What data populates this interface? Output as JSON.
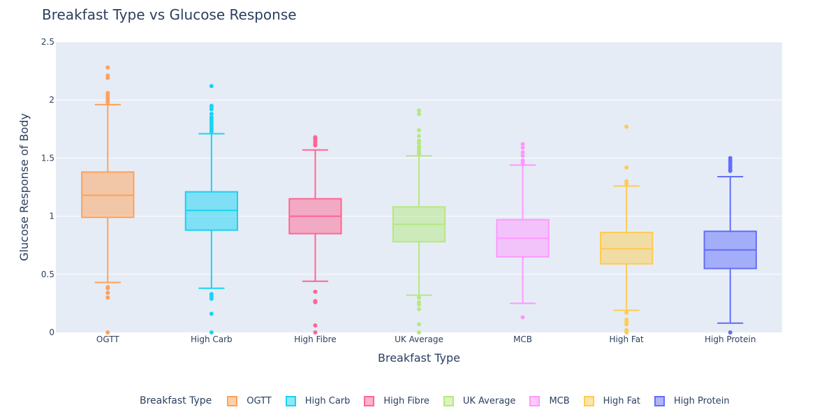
{
  "chart_data": {
    "type": "box",
    "title": "Breakfast Type vs Glucose Response",
    "xlabel": "Breakfast Type",
    "ylabel": "Glucose Response of Body",
    "ylim": [
      0,
      2.5
    ],
    "yticks": [
      0,
      0.5,
      1,
      1.5,
      2,
      2.5
    ],
    "ytick_labels": [
      "0",
      "0.5",
      "1",
      "1.5",
      "2",
      "2.5"
    ],
    "grid": true,
    "legend": {
      "title": "Breakfast Type",
      "placement": "bottom"
    },
    "categories": [
      "OGTT",
      "High Carb",
      "High Fibre",
      "UK Average",
      "MCB",
      "High Fat",
      "High Protein"
    ],
    "series": [
      {
        "name": "OGTT",
        "color": "#FFA15A",
        "q1": 0.99,
        "median": 1.18,
        "q3": 1.38,
        "lower_fence": 0.43,
        "upper_fence": 1.96,
        "outliers": [
          0.0,
          0.3,
          0.34,
          0.38,
          0.39,
          1.98,
          2.0,
          2.02,
          2.04,
          2.06,
          2.19,
          2.21,
          2.28
        ]
      },
      {
        "name": "High Carb",
        "color": "#19D3F3",
        "q1": 0.88,
        "median": 1.05,
        "q3": 1.21,
        "lower_fence": 0.38,
        "upper_fence": 1.71,
        "outliers": [
          0.0,
          0.16,
          0.29,
          0.31,
          0.33,
          1.73,
          1.75,
          1.77,
          1.79,
          1.81,
          1.83,
          1.85,
          1.88,
          1.92,
          1.94,
          1.95,
          2.12
        ]
      },
      {
        "name": "High Fibre",
        "color": "#FF6692",
        "q1": 0.85,
        "median": 1.0,
        "q3": 1.15,
        "lower_fence": 0.44,
        "upper_fence": 1.57,
        "outliers": [
          0.0,
          0.06,
          0.26,
          0.27,
          0.35,
          1.61,
          1.62,
          1.64,
          1.66,
          1.67,
          1.68
        ]
      },
      {
        "name": "UK Average",
        "color": "#B6E880",
        "q1": 0.78,
        "median": 0.93,
        "q3": 1.08,
        "lower_fence": 0.32,
        "upper_fence": 1.52,
        "outliers": [
          0.0,
          0.07,
          0.2,
          0.24,
          0.26,
          0.3,
          1.54,
          1.56,
          1.58,
          1.6,
          1.63,
          1.65,
          1.69,
          1.74,
          1.88,
          1.91
        ]
      },
      {
        "name": "MCB",
        "color": "#FF97FF",
        "q1": 0.65,
        "median": 0.81,
        "q3": 0.97,
        "lower_fence": 0.25,
        "upper_fence": 1.44,
        "outliers": [
          0.13,
          1.46,
          1.48,
          1.52,
          1.55,
          1.59,
          1.62
        ]
      },
      {
        "name": "High Fat",
        "color": "#FECB52",
        "q1": 0.59,
        "median": 0.72,
        "q3": 0.86,
        "lower_fence": 0.19,
        "upper_fence": 1.26,
        "outliers": [
          0.0,
          0.02,
          0.07,
          0.09,
          0.11,
          0.17,
          1.28,
          1.3,
          1.42,
          1.77
        ]
      },
      {
        "name": "High Protein",
        "color": "#636EFA",
        "q1": 0.55,
        "median": 0.71,
        "q3": 0.87,
        "lower_fence": 0.08,
        "upper_fence": 1.34,
        "outliers": [
          0.0,
          1.39,
          1.4,
          1.42,
          1.44,
          1.46,
          1.48,
          1.5
        ]
      }
    ]
  }
}
